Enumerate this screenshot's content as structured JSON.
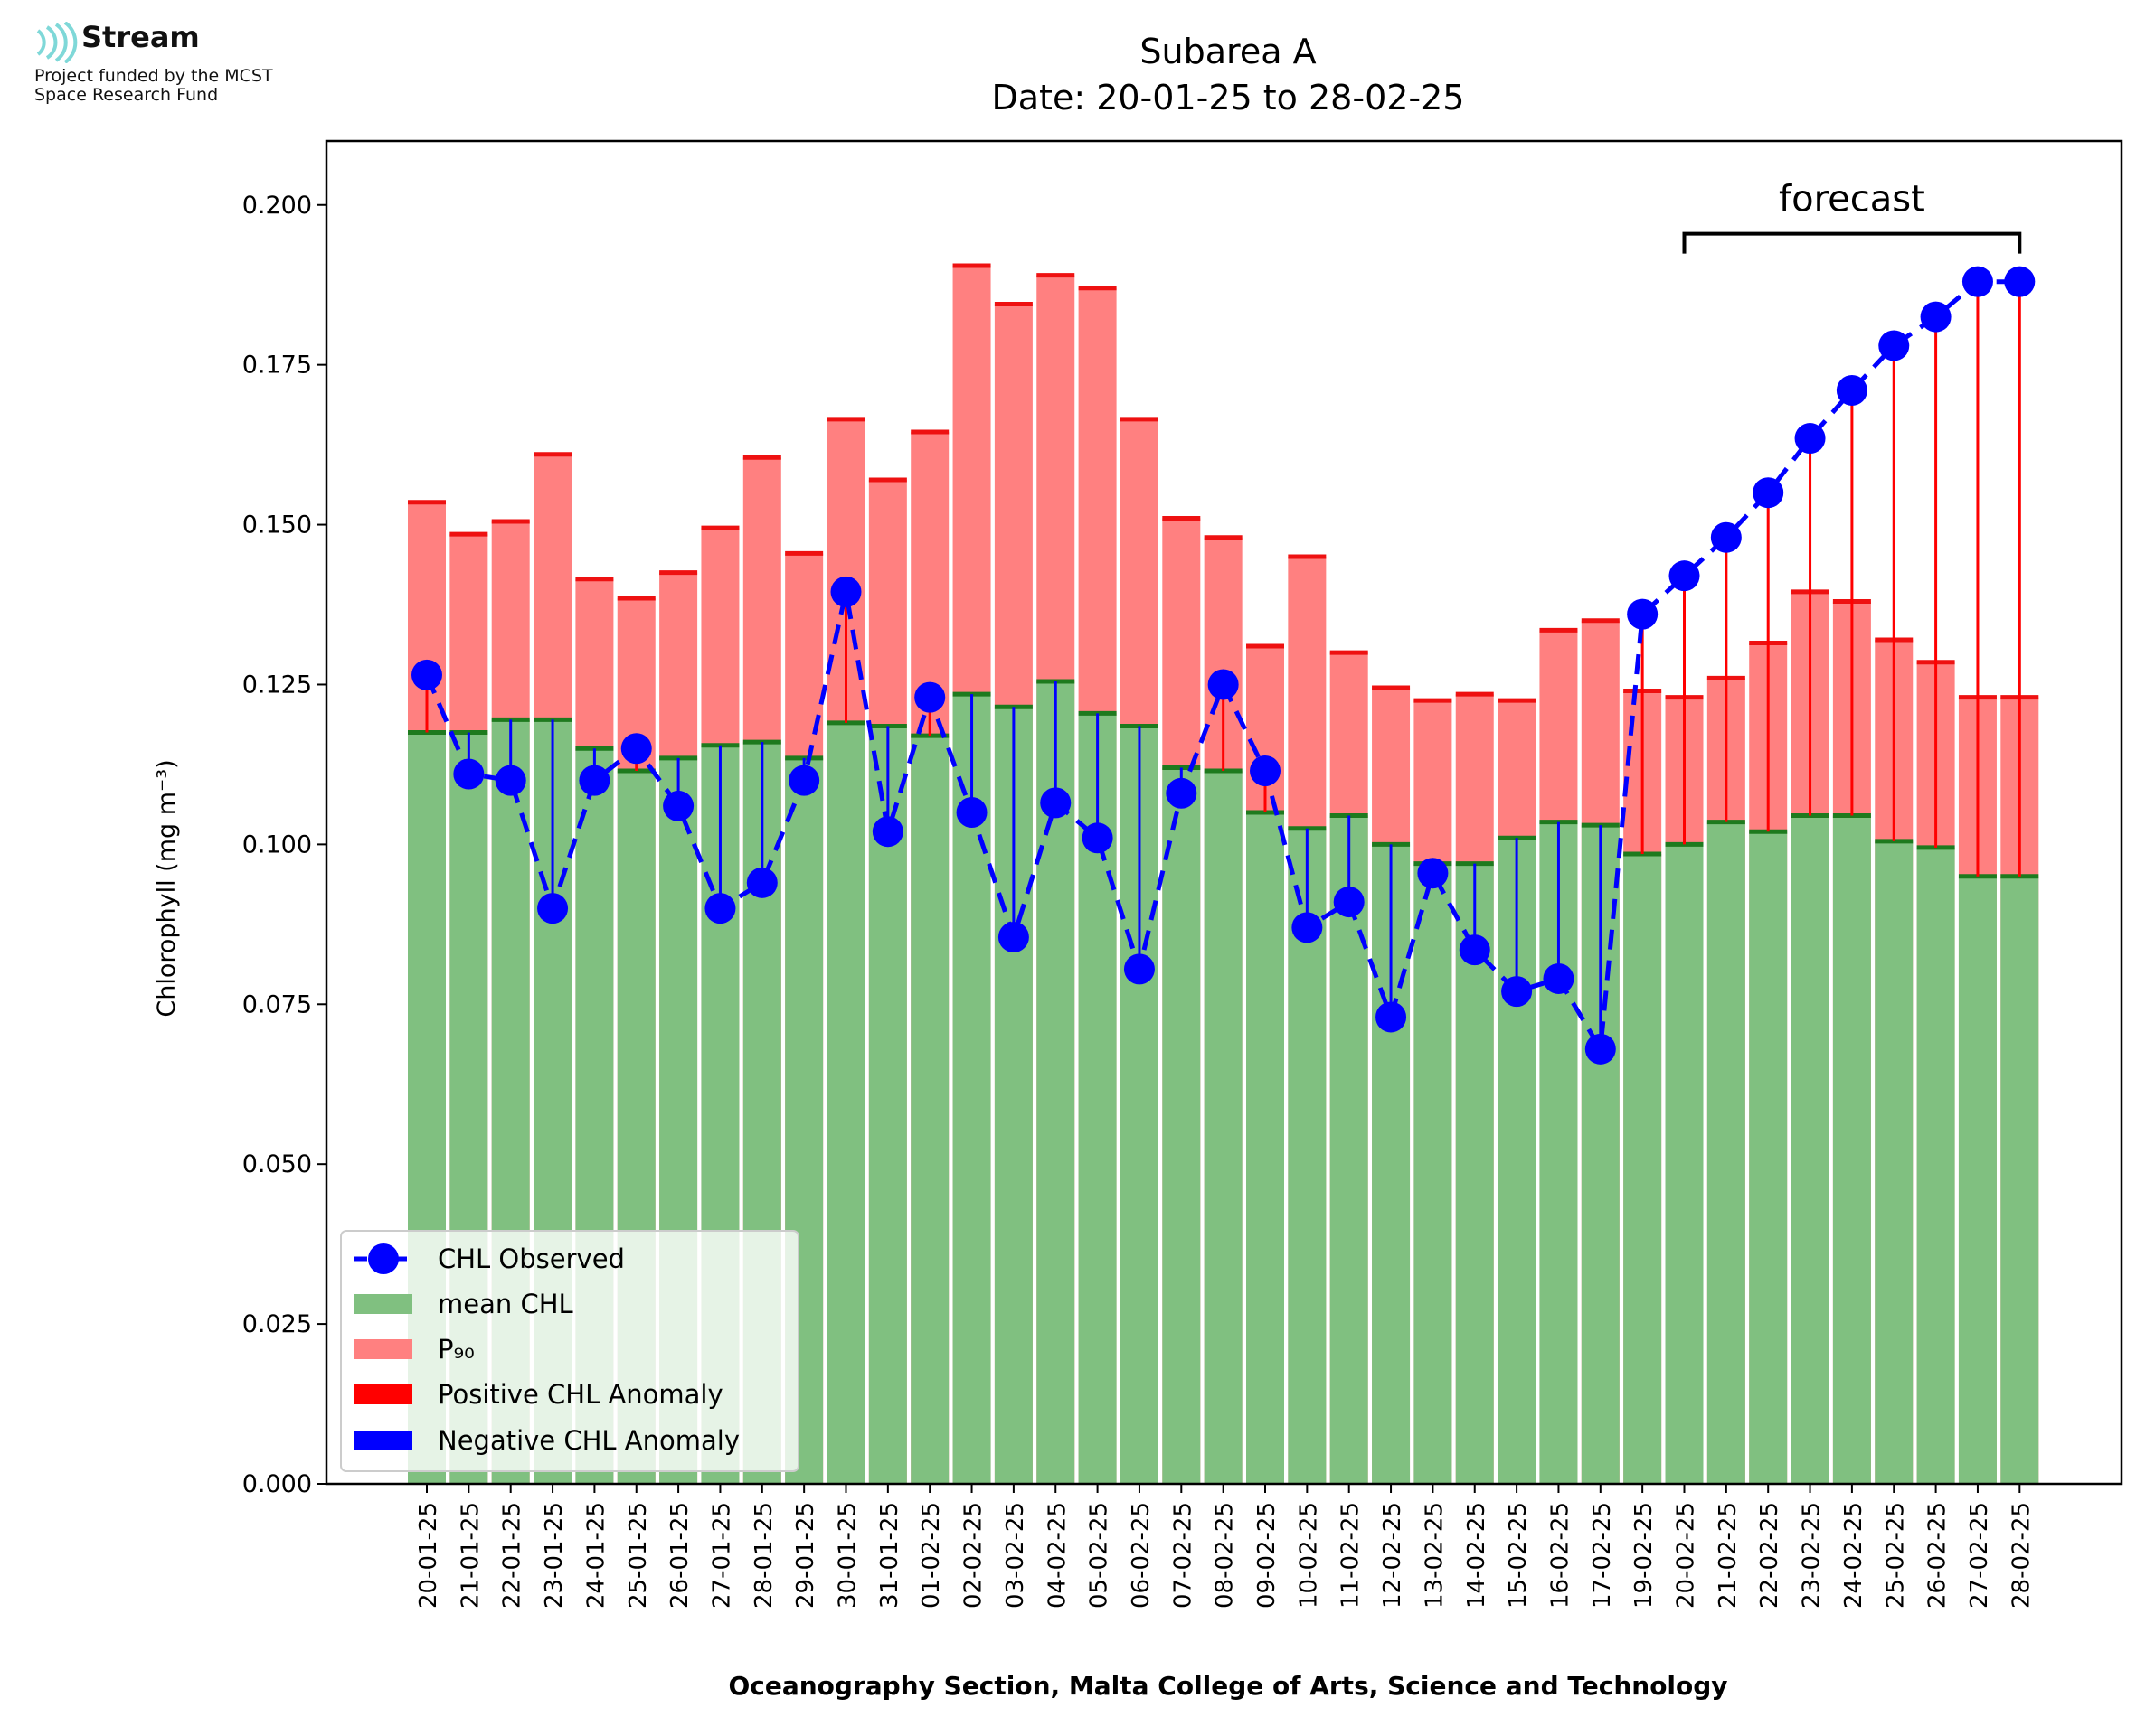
{
  "logo": {
    "name": "Stream",
    "line1": "Project funded by the MCST",
    "line2": "Space Research Fund"
  },
  "chart_data": {
    "type": "bar",
    "title": "Subarea A",
    "subtitle": "Date: 20-01-25 to 28-02-25",
    "xlabel": "Oceanography Section, Malta College of Arts, Science and Technology",
    "ylabel": "Chlorophyll (mg m⁻³)",
    "ylim": [
      0,
      0.21
    ],
    "yticks": [
      "0.000",
      "0.025",
      "0.050",
      "0.075",
      "0.100",
      "0.125",
      "0.150",
      "0.175",
      "0.200"
    ],
    "grid": false,
    "legend_position": "lower-left",
    "annotation": "forecast",
    "forecast_start": "20-02-25",
    "forecast_end": "28-02-25",
    "categories": [
      "20-01-25",
      "21-01-25",
      "22-01-25",
      "23-01-25",
      "24-01-25",
      "25-01-25",
      "26-01-25",
      "27-01-25",
      "28-01-25",
      "29-01-25",
      "30-01-25",
      "31-01-25",
      "01-02-25",
      "02-02-25",
      "03-02-25",
      "04-02-25",
      "05-02-25",
      "06-02-25",
      "07-02-25",
      "08-02-25",
      "09-02-25",
      "10-02-25",
      "11-02-25",
      "12-02-25",
      "13-02-25",
      "14-02-25",
      "15-02-25",
      "16-02-25",
      "17-02-25",
      "19-02-25",
      "20-02-25",
      "21-02-25",
      "22-02-25",
      "23-02-25",
      "24-02-25",
      "25-02-25",
      "26-02-25",
      "27-02-25",
      "28-02-25"
    ],
    "series": [
      {
        "name": "CHL Observed",
        "color": "#0000ff",
        "values": [
          0.1265,
          0.111,
          0.11,
          0.09,
          0.11,
          0.115,
          0.106,
          0.09,
          0.094,
          0.11,
          0.1395,
          0.102,
          0.123,
          0.105,
          0.0855,
          0.1065,
          0.101,
          0.0805,
          0.108,
          0.125,
          0.1115,
          0.087,
          0.091,
          0.073,
          0.0955,
          0.0835,
          0.077,
          0.079,
          0.068,
          0.136,
          0.142,
          0.148,
          0.155,
          0.1635,
          0.171,
          0.178,
          0.1825,
          0.188,
          0.188
        ]
      },
      {
        "name": "mean CHL",
        "color": "#80c080",
        "values": [
          0.1175,
          0.1175,
          0.1195,
          0.1195,
          0.115,
          0.1115,
          0.1135,
          0.1155,
          0.116,
          0.1135,
          0.119,
          0.1185,
          0.117,
          0.1235,
          0.1215,
          0.1255,
          0.1205,
          0.1185,
          0.112,
          0.1115,
          0.105,
          0.1025,
          0.1045,
          0.1,
          0.097,
          0.097,
          0.101,
          0.1035,
          0.103,
          0.0985,
          0.1,
          0.1035,
          0.102,
          0.1045,
          0.1045,
          0.1005,
          0.0995,
          0.095,
          0.095
        ]
      },
      {
        "name": "P₉₀",
        "color": "#ff8080",
        "values": [
          0.1535,
          0.1485,
          0.1505,
          0.161,
          0.1415,
          0.1385,
          0.1425,
          0.1495,
          0.1605,
          0.1455,
          0.1665,
          0.157,
          0.1645,
          0.1905,
          0.1845,
          0.189,
          0.187,
          0.1665,
          0.151,
          0.148,
          0.131,
          0.145,
          0.13,
          0.1245,
          0.1225,
          0.1235,
          0.1225,
          0.1335,
          0.135,
          0.124,
          0.123,
          0.126,
          0.1315,
          0.1395,
          0.138,
          0.132,
          0.1285,
          0.123,
          0.123
        ]
      },
      {
        "name": "Positive CHL Anomaly",
        "color": "#ff0000"
      },
      {
        "name": "Negative CHL Anomaly",
        "color": "#0000ff"
      }
    ],
    "colors": {
      "mean_top": "#1e7a1e",
      "p90_top": "#ee1111"
    }
  }
}
